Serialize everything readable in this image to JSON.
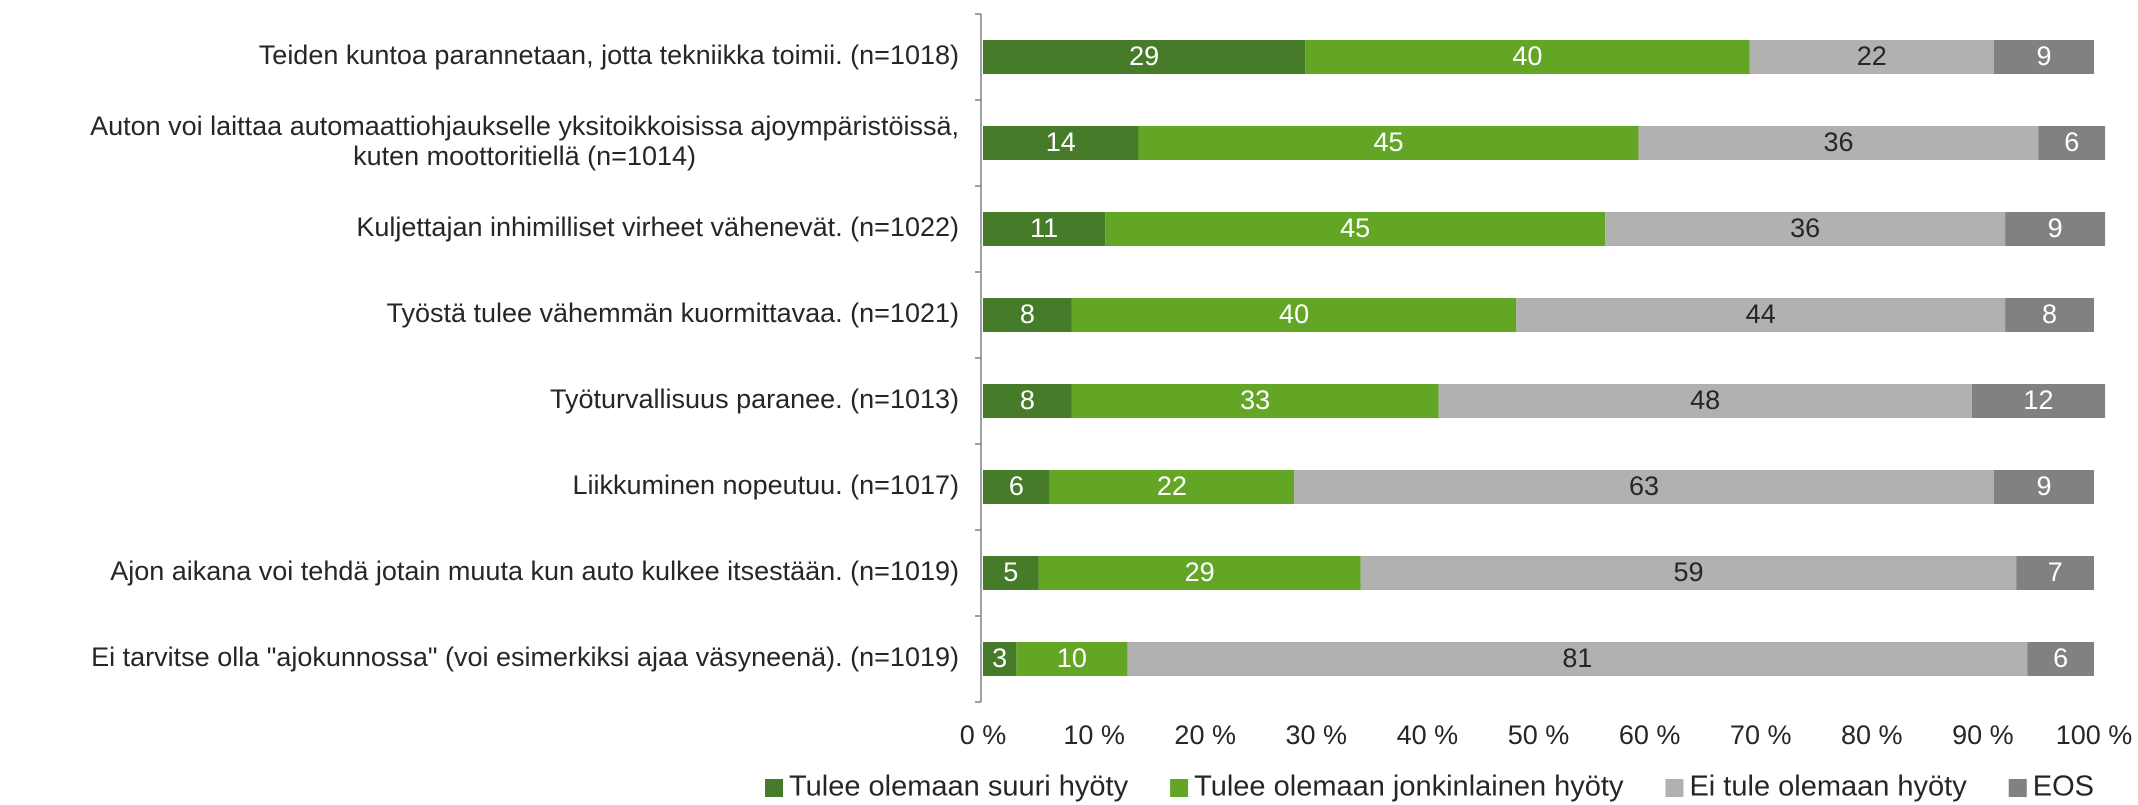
{
  "chart_data": {
    "type": "stacked_barh",
    "categories": [
      "Teiden kuntoa parannetaan, jotta tekniikka toimii. (n=1018)",
      "Auton voi laittaa automaattiohjaukselle yksitoikkoisissa ajoympäristöissä,\nkuten moottoritiellä (n=1014)",
      "Kuljettajan inhimilliset virheet vähenevät. (n=1022)",
      "Työstä tulee vähemmän kuormittavaa. (n=1021)",
      "Työturvallisuus paranee. (n=1013)",
      "Liikkuminen nopeutuu. (n=1017)",
      "Ajon aikana voi tehdä jotain muuta kun auto kulkee itsestään. (n=1019)",
      "Ei tarvitse olla \"ajokunnossa\" (voi esimerkiksi ajaa väsyneenä). (n=1019)"
    ],
    "series": [
      {
        "name": "Tulee olemaan suuri hyöty",
        "color": "#467b2a",
        "values": [
          29,
          14,
          11,
          8,
          8,
          6,
          5,
          3
        ]
      },
      {
        "name": "Tulee olemaan jonkinlainen hyöty",
        "color": "#63a626",
        "values": [
          40,
          45,
          45,
          40,
          33,
          22,
          29,
          10
        ]
      },
      {
        "name": "Ei tule olemaan hyöty",
        "color": "#b1b1b1",
        "values": [
          22,
          36,
          36,
          44,
          48,
          63,
          59,
          81
        ]
      },
      {
        "name": "EOS",
        "color": "#818181",
        "values": [
          9,
          6,
          9,
          8,
          12,
          9,
          7,
          6
        ]
      }
    ],
    "xlim": [
      0,
      100
    ],
    "xticks": [
      {
        "value": 0,
        "label": "0 %"
      },
      {
        "value": 10,
        "label": "10 %"
      },
      {
        "value": 20,
        "label": "20 %"
      },
      {
        "value": 30,
        "label": "30 %"
      },
      {
        "value": 40,
        "label": "40 %"
      },
      {
        "value": 50,
        "label": "50 %"
      },
      {
        "value": 60,
        "label": "60 %"
      },
      {
        "value": 70,
        "label": "70 %"
      },
      {
        "value": 80,
        "label": "80 %"
      },
      {
        "value": 90,
        "label": "90 %"
      },
      {
        "value": 100,
        "label": "100 %"
      }
    ],
    "legend": "bottom"
  }
}
